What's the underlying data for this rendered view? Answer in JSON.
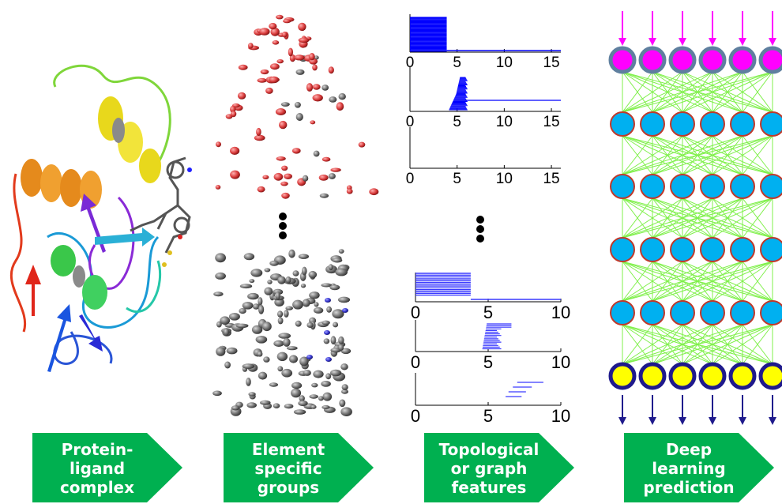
{
  "panels": [
    {
      "label_lines": [
        "Protein-",
        "ligand",
        "complex"
      ]
    },
    {
      "label_lines": [
        "Element",
        "specific",
        "groups"
      ]
    },
    {
      "label_lines": [
        "Topological",
        "or graph",
        "features"
      ]
    },
    {
      "label_lines": [
        "Deep",
        "learning",
        "prediction"
      ]
    }
  ],
  "barcode_axes_upper": {
    "ticks": [
      "0",
      "5",
      "10",
      "15"
    ]
  },
  "barcode_axes_lower": {
    "ticks": [
      "0",
      "5",
      "10"
    ]
  },
  "colors": {
    "arrow_green": "#00b050",
    "input_arrow": "#ff00ff",
    "output_arrow": "#1f1a8c",
    "input_node": "#ff00ff",
    "hidden_node": "#00b0f0",
    "output_node": "#ffff00",
    "edge": "#7ff04a",
    "barcode": "#0000ff",
    "atom_red": "#d83a3a",
    "atom_gray": "#707070"
  }
}
